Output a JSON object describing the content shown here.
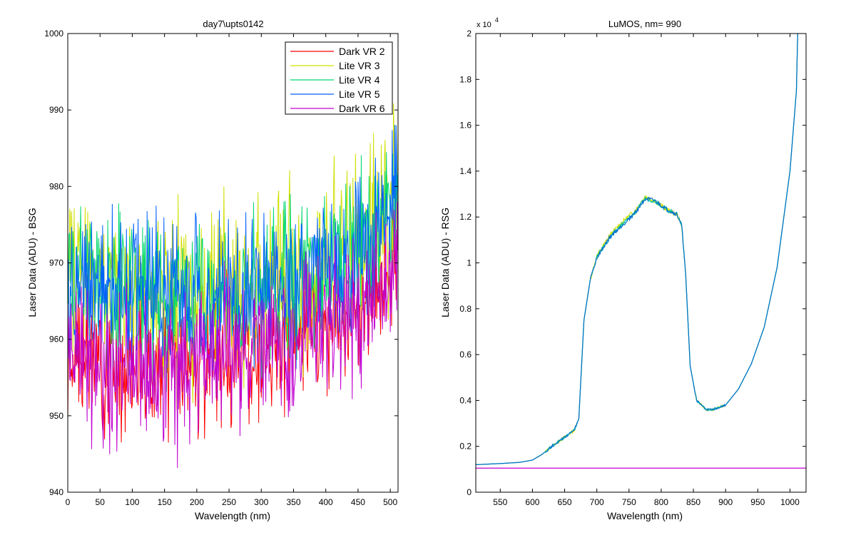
{
  "chart_data": [
    {
      "type": "line",
      "title": "day7\\upts0142",
      "xlabel": "Wavelength (nm)",
      "ylabel": "Laser Data (ADU) - BSG",
      "xlim": [
        0,
        512
      ],
      "ylim": [
        940,
        1000
      ],
      "xticks": [
        0,
        50,
        100,
        150,
        200,
        250,
        300,
        350,
        400,
        450,
        500
      ],
      "yticks": [
        940,
        950,
        960,
        970,
        980,
        990,
        1000
      ],
      "legend_position": "top-right",
      "noise_seed": 7,
      "series": [
        {
          "name": "Dark VR 2",
          "color": "#ff0000",
          "noise_amplitude": 5,
          "x": [
            0,
            50,
            100,
            150,
            200,
            250,
            300,
            350,
            400,
            450,
            500,
            512
          ],
          "baseline": [
            958,
            957,
            956,
            956,
            957,
            958,
            959,
            960,
            962,
            964,
            968,
            970
          ]
        },
        {
          "name": "Lite VR 3",
          "color": "#d0e000",
          "noise_amplitude": 7,
          "x": [
            0,
            50,
            100,
            150,
            200,
            250,
            300,
            350,
            400,
            450,
            500,
            512
          ],
          "baseline": [
            969,
            968,
            967,
            966,
            966,
            967,
            967,
            968,
            969,
            972,
            976,
            980
          ]
        },
        {
          "name": "Lite VR 4",
          "color": "#00d870",
          "noise_amplitude": 6,
          "x": [
            0,
            50,
            100,
            150,
            200,
            250,
            300,
            350,
            400,
            450,
            500,
            512
          ],
          "baseline": [
            969,
            968,
            967,
            966,
            966,
            966,
            967,
            968,
            969,
            972,
            976,
            980
          ]
        },
        {
          "name": "Lite VR 5",
          "color": "#0060ff",
          "noise_amplitude": 6,
          "x": [
            0,
            50,
            100,
            150,
            200,
            250,
            300,
            350,
            400,
            450,
            500,
            512
          ],
          "baseline": [
            969,
            968,
            967,
            966,
            966,
            966,
            967,
            968,
            969,
            971,
            975,
            980
          ]
        },
        {
          "name": "Dark VR 6",
          "color": "#c000d0",
          "noise_amplitude": 6,
          "x": [
            0,
            50,
            100,
            150,
            200,
            250,
            300,
            350,
            400,
            450,
            500,
            512
          ],
          "baseline": [
            958,
            957,
            956,
            956,
            957,
            958,
            959,
            960,
            962,
            964,
            968,
            970
          ]
        }
      ]
    },
    {
      "type": "line",
      "title": "LuMOS, nm= 990",
      "xlabel": "Wavelength (nm)",
      "ylabel": "Laser Data (ADU) - RSG",
      "xlim": [
        512,
        1025
      ],
      "ylim": [
        0,
        20000
      ],
      "xticks": [
        550,
        600,
        650,
        700,
        750,
        800,
        850,
        900,
        950,
        1000
      ],
      "yticks": [
        0,
        2000,
        4000,
        6000,
        8000,
        10000,
        12000,
        14000,
        16000,
        18000,
        20000
      ],
      "ytick_labels": [
        "0",
        "0.2",
        "0.4",
        "0.6",
        "0.8",
        "1",
        "1.2",
        "1.4",
        "1.6",
        "1.8",
        "2"
      ],
      "y_multiplier_base": "x 10",
      "y_multiplier_exp": "4",
      "series": [
        {
          "color": "#d0e000",
          "x": [
            512,
            550,
            580,
            600,
            615,
            630,
            650,
            665,
            672,
            680,
            690,
            700,
            720,
            740,
            760,
            775,
            790,
            810,
            825,
            832,
            838,
            845,
            855,
            870,
            880,
            900,
            920,
            940,
            960,
            980,
            1000,
            1010,
            1012
          ],
          "y": [
            1200,
            1250,
            1300,
            1400,
            1650,
            2000,
            2400,
            2700,
            3200,
            7500,
            9300,
            10300,
            11200,
            11800,
            12300,
            12900,
            12700,
            12300,
            12100,
            11600,
            9500,
            5500,
            4000,
            3600,
            3600,
            3800,
            4500,
            5600,
            7200,
            9800,
            14000,
            17500,
            20000
          ]
        },
        {
          "color": "#00c0a0",
          "x": [
            512,
            550,
            580,
            600,
            615,
            630,
            650,
            665,
            672,
            680,
            690,
            700,
            720,
            740,
            760,
            775,
            790,
            810,
            825,
            832,
            838,
            845,
            855,
            870,
            880,
            900,
            920,
            940,
            960,
            980,
            1000,
            1010,
            1012
          ],
          "y": [
            1200,
            1250,
            1300,
            1400,
            1650,
            2000,
            2400,
            2700,
            3200,
            7500,
            9300,
            10250,
            11100,
            11700,
            12200,
            12800,
            12700,
            12300,
            12100,
            11600,
            9500,
            5500,
            4000,
            3600,
            3600,
            3800,
            4500,
            5600,
            7200,
            9800,
            14000,
            17500,
            20000
          ]
        },
        {
          "color": "#0070d0",
          "x": [
            512,
            550,
            580,
            600,
            615,
            630,
            650,
            665,
            672,
            680,
            690,
            700,
            720,
            740,
            760,
            775,
            790,
            810,
            825,
            832,
            838,
            845,
            855,
            870,
            880,
            900,
            920,
            940,
            960,
            980,
            1000,
            1010,
            1012
          ],
          "y": [
            1200,
            1250,
            1300,
            1400,
            1650,
            2000,
            2400,
            2700,
            3200,
            7500,
            9300,
            10200,
            11100,
            11650,
            12200,
            12800,
            12700,
            12300,
            12100,
            11600,
            9500,
            5500,
            4000,
            3600,
            3600,
            3800,
            4500,
            5600,
            7200,
            9800,
            14000,
            17500,
            20000
          ]
        },
        {
          "color": "#c000d0",
          "x": [
            512,
            1025
          ],
          "y": [
            1050,
            1050
          ]
        }
      ]
    }
  ]
}
